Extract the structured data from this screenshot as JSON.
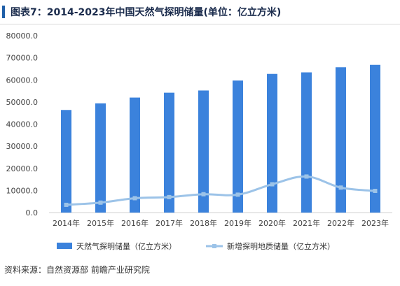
{
  "title": "图表7：2014-2023年中国天然气探明储量(单位：亿立方米)",
  "source": "资料来源：自然资源部 前瞻产业研究院",
  "colors": {
    "bar": "#3b82dc",
    "line": "#9cc3e8",
    "title_accent": "#1f5fa8"
  },
  "chart_data": {
    "type": "bar",
    "categories": [
      "2014年",
      "2015年",
      "2016年",
      "2017年",
      "2018年",
      "2019年",
      "2020年",
      "2021年",
      "2022年",
      "2023年"
    ],
    "series": [
      {
        "name": "天然气探明储量（亿立方米）",
        "type": "bar",
        "values": [
          46400,
          49400,
          52000,
          54200,
          55200,
          59700,
          62700,
          63400,
          65700,
          66800
        ]
      },
      {
        "name": "新增探明地质储量（亿立方米）",
        "type": "line",
        "values": [
          3500,
          4500,
          6500,
          7000,
          8300,
          8100,
          12800,
          16300,
          11300,
          9800
        ]
      }
    ],
    "ylim": [
      0,
      80000
    ],
    "yticks": [
      "0.0",
      "10000.0",
      "20000.0",
      "30000.0",
      "40000.0",
      "50000.0",
      "60000.0",
      "70000.0",
      "80000.0"
    ],
    "ytick_values": [
      0,
      10000,
      20000,
      30000,
      40000,
      50000,
      60000,
      70000,
      80000
    ],
    "legend_position": "bottom",
    "grid": false
  }
}
